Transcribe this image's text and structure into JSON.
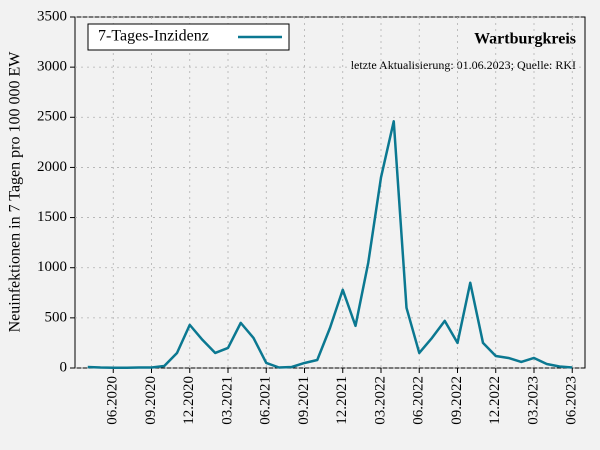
{
  "chart_data": {
    "type": "line",
    "title": "Wartburgkreis",
    "subtitle": "letzte Aktualisierung: 01.06.2023; Quelle: RKI",
    "y_label": "Neuinfektionen in 7 Tagen pro 100 000 EW",
    "x": [
      "04.2020",
      "05.2020",
      "06.2020",
      "07.2020",
      "08.2020",
      "09.2020",
      "10.2020",
      "11.2020",
      "12.2020",
      "01.2021",
      "02.2021",
      "03.2021",
      "04.2021",
      "05.2021",
      "06.2021",
      "07.2021",
      "08.2021",
      "09.2021",
      "10.2021",
      "11.2021",
      "12.2021",
      "01.2022",
      "02.2022",
      "03.2022",
      "04.2022",
      "05.2022",
      "06.2022",
      "07.2022",
      "08.2022",
      "09.2022",
      "10.2022",
      "11.2022",
      "12.2022",
      "01.2023",
      "02.2023",
      "03.2023",
      "04.2023",
      "05.2023",
      "06.2023"
    ],
    "series": [
      {
        "name": "7-Tages-Inzidenz",
        "color": "#0b7891",
        "values": [
          10,
          5,
          3,
          2,
          5,
          5,
          20,
          150,
          430,
          280,
          150,
          200,
          450,
          300,
          50,
          5,
          10,
          50,
          80,
          400,
          780,
          420,
          1050,
          1900,
          2460,
          600,
          150,
          300,
          470,
          250,
          850,
          250,
          120,
          100,
          60,
          100,
          40,
          15,
          5
        ]
      }
    ],
    "xlim": [
      "03.2020",
      "07.2023"
    ],
    "xticks": [
      "06.2020",
      "09.2020",
      "12.2020",
      "03.2021",
      "06.2021",
      "09.2021",
      "12.2021",
      "03.2022",
      "06.2022",
      "09.2022",
      "12.2022",
      "03.2023",
      "06.2023"
    ],
    "ylim": [
      0,
      3500
    ],
    "yticks": [
      0,
      500,
      1000,
      1500,
      2000,
      2500,
      3000,
      3500
    ],
    "grid": true,
    "legend": "upper left"
  }
}
